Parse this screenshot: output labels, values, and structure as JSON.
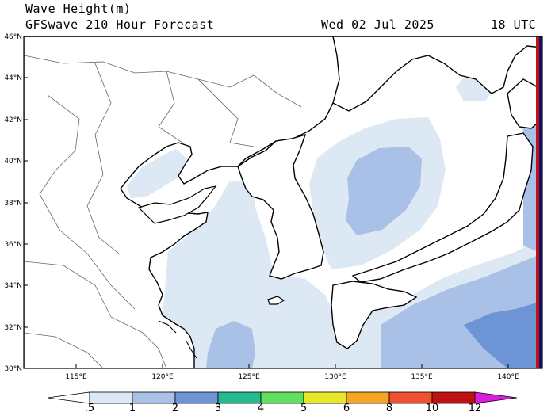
{
  "header": {
    "title": "Wave Height(m)",
    "subtitle": "GFSwave 210 Hour Forecast",
    "date": "Wed 02 Jul 2025",
    "time": "18 UTC"
  },
  "axes": {
    "lat_labels": [
      "46°N",
      "44°N",
      "42°N",
      "40°N",
      "38°N",
      "36°N",
      "34°N",
      "32°N",
      "30°N"
    ],
    "lon_labels": [
      "115°E",
      "120°E",
      "125°E",
      "130°E",
      "135°E",
      "140°E"
    ]
  },
  "colorbar": {
    "labels": [
      ".5",
      "1",
      "2",
      "3",
      "4",
      "5",
      "6",
      "8",
      "10",
      "12"
    ],
    "colors": [
      "#f0f0f0",
      "#dde8f5",
      "#a9c1e6",
      "#6d94d4",
      "#27b98f",
      "#5fe05f",
      "#e8e82a",
      "#f5a623",
      "#f05030",
      "#c01010",
      "#d91fd9"
    ]
  },
  "colors": {
    "wave_0_5_1": "#dde8f5",
    "wave_1_2": "#a9c1e6",
    "wave_2_3": "#6d94d4",
    "land": "#ffffff",
    "edge_red": "#c01010",
    "edge_navy": "#10106a"
  }
}
